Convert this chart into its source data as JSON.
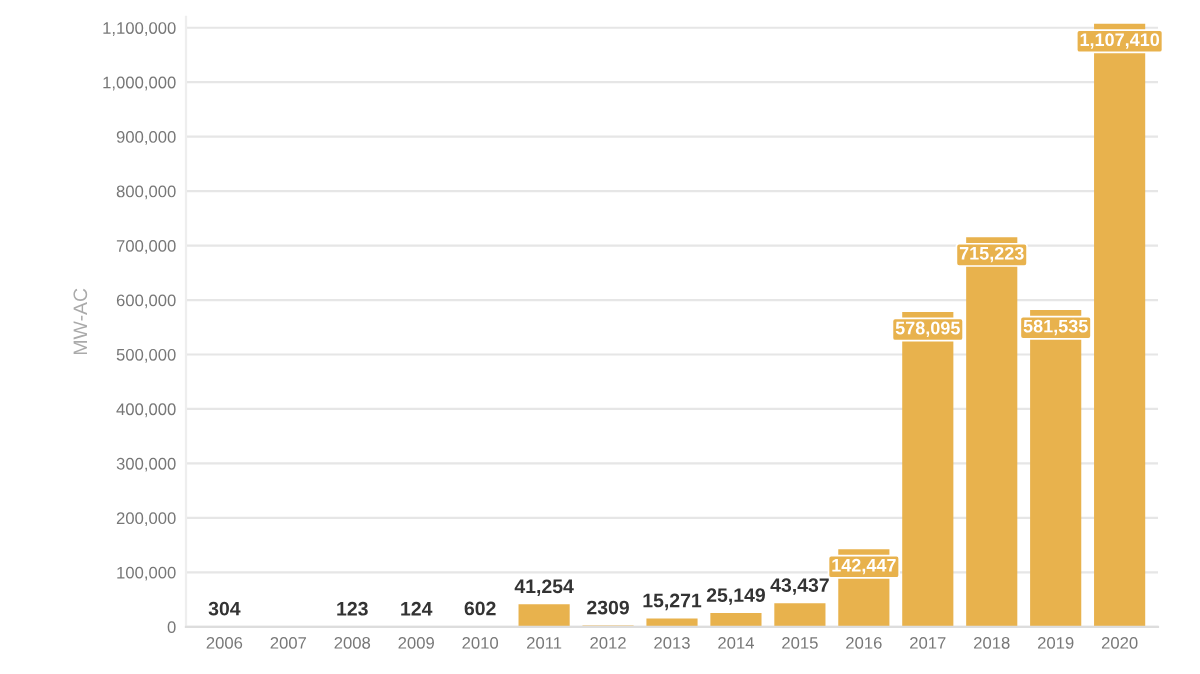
{
  "chart_data": {
    "type": "bar",
    "ylabel": "MW-AC",
    "categories": [
      "2006",
      "2007",
      "2008",
      "2009",
      "2010",
      "2011",
      "2012",
      "2013",
      "2014",
      "2015",
      "2016",
      "2017",
      "2018",
      "2019",
      "2020"
    ],
    "values": [
      304,
      0,
      123,
      124,
      602,
      41254,
      2309,
      15271,
      25149,
      43437,
      142447,
      578095,
      715223,
      581535,
      1107410
    ],
    "value_labels": [
      "304",
      null,
      "123",
      "124",
      "602",
      "41,254",
      "2309",
      "15,271",
      "25,149",
      "43,437",
      "142,447",
      "578,095",
      "715,223",
      "581,535",
      "1,107,410"
    ],
    "color": "#e8b24d",
    "ylim": [
      0,
      1120000
    ],
    "yticks": [
      {
        "value": 0,
        "label": "0"
      },
      {
        "value": 100000,
        "label": "100,000"
      },
      {
        "value": 200000,
        "label": "200,000"
      },
      {
        "value": 300000,
        "label": "300,000"
      },
      {
        "value": 400000,
        "label": "400,000"
      },
      {
        "value": 500000,
        "label": "500,000"
      },
      {
        "value": 600000,
        "label": "600,000"
      },
      {
        "value": 700000,
        "label": "700,000"
      },
      {
        "value": 800000,
        "label": "800,000"
      },
      {
        "value": 900000,
        "label": "900,000"
      },
      {
        "value": 1000000,
        "label": "1,000,000"
      },
      {
        "value": 1100000,
        "label": "1,100,000"
      }
    ],
    "grid": "y",
    "legend": false
  }
}
